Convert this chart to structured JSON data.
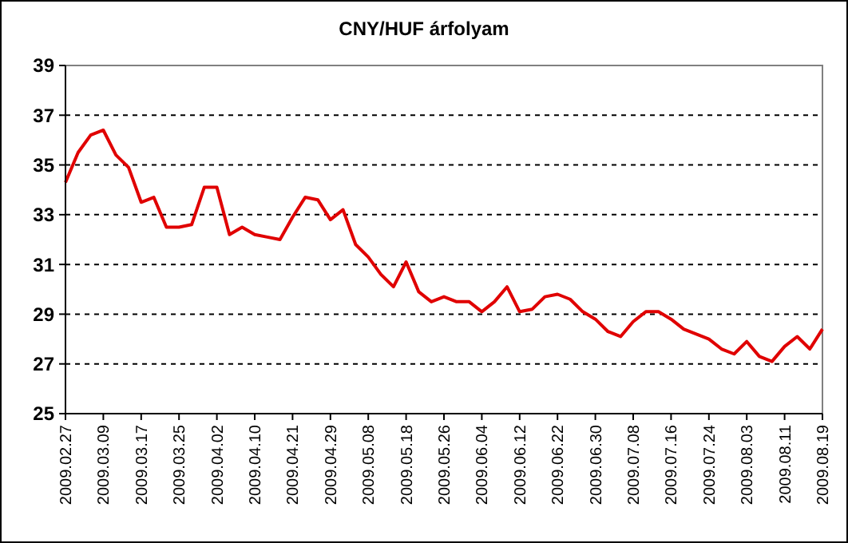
{
  "chart_data": {
    "type": "line",
    "title": "CNY/HUF árfolyam",
    "categories": [
      "2009.02.27",
      null,
      null,
      "2009.03.09",
      null,
      null,
      "2009.03.17",
      null,
      null,
      "2009.03.25",
      null,
      null,
      "2009.04.02",
      null,
      null,
      "2009.04.10",
      null,
      null,
      "2009.04.21",
      null,
      null,
      "2009.04.29",
      null,
      null,
      "2009.05.08",
      null,
      null,
      "2009.05.18",
      null,
      null,
      "2009.05.26",
      null,
      null,
      "2009.06.04",
      null,
      null,
      "2009.06.12",
      null,
      null,
      "2009.06.22",
      null,
      null,
      "2009.06.30",
      null,
      null,
      "2009.07.08",
      null,
      null,
      "2009.07.16",
      null,
      null,
      "2009.07.24",
      null,
      null,
      "2009.08.03",
      null,
      null,
      "2009.08.11",
      null,
      null,
      "2009.08.19"
    ],
    "series": [
      {
        "color": "#e00000",
        "values": [
          34.3,
          35.5,
          36.2,
          36.4,
          35.4,
          34.9,
          33.5,
          33.7,
          32.5,
          32.5,
          32.6,
          34.1,
          34.1,
          32.2,
          32.5,
          32.2,
          32.1,
          32.0,
          32.9,
          33.7,
          33.6,
          32.8,
          33.2,
          31.8,
          31.3,
          30.6,
          30.1,
          31.1,
          29.9,
          29.5,
          29.7,
          29.5,
          29.5,
          29.1,
          29.5,
          30.1,
          29.1,
          29.2,
          29.7,
          29.8,
          29.6,
          29.1,
          28.8,
          28.3,
          28.1,
          28.7,
          29.1,
          29.1,
          28.8,
          28.4,
          28.2,
          28.0,
          27.6,
          27.4,
          27.9,
          27.3,
          27.1,
          27.7,
          28.1,
          27.6,
          28.4
        ]
      }
    ],
    "ylim": [
      25,
      39
    ],
    "yticks": [
      25,
      27,
      29,
      31,
      33,
      35,
      37,
      39
    ],
    "grid": "y",
    "marker": "none",
    "line_style": "solid"
  }
}
